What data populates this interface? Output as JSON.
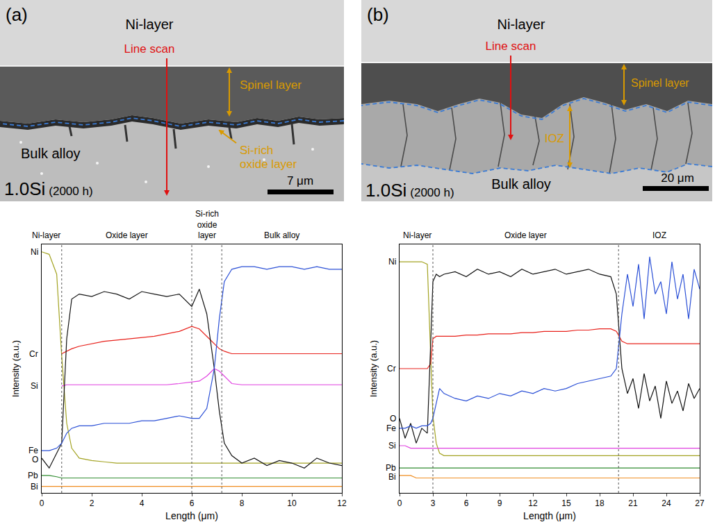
{
  "micrographs": [
    {
      "panel": "(a)",
      "top_layer": "Ni-layer",
      "scan_label": "Line scan",
      "layers": [
        "Spinel layer",
        "Si-rich oxide layer"
      ],
      "substrate": "Bulk alloy",
      "sample": "1.0Si",
      "condition": "(2000 h)",
      "scale_bar": "7 μm"
    },
    {
      "panel": "(b)",
      "top_layer": "Ni-layer",
      "scan_label": "Line scan",
      "layers": [
        "Spinel layer",
        "IOZ"
      ],
      "substrate": "Bulk alloy",
      "sample": "1.0Si",
      "condition": "(2000 h)",
      "scale_bar": "20 μm"
    }
  ],
  "chart_data": [
    {
      "type": "line",
      "x_label": "Length (μm)",
      "y_label": "Intensity (a.u.)",
      "xlim": [
        0,
        12
      ],
      "xticks": [
        0,
        2,
        4,
        6,
        8,
        10,
        12
      ],
      "ylim": [
        0,
        100
      ],
      "tick_labels": "x",
      "grid": false,
      "regions": [
        "Ni-layer",
        "Oxide layer",
        "Si-rich oxide layer",
        "Bulk alloy"
      ],
      "boundaries": [
        0.8,
        6.0,
        7.2
      ],
      "x": [
        0,
        0.3,
        0.6,
        0.8,
        1.0,
        1.2,
        1.5,
        2,
        2.5,
        3,
        3.5,
        4,
        4.5,
        5,
        5.5,
        6,
        6.3,
        6.6,
        6.9,
        7.1,
        7.3,
        7.6,
        8,
        8.5,
        9,
        9.5,
        10,
        10.5,
        11,
        11.5,
        12
      ],
      "series": [
        {
          "name": "Ni",
          "color": "#a3a322",
          "values": [
            97,
            96,
            88,
            55,
            28,
            18,
            14,
            13,
            12.5,
            12,
            12,
            12,
            12,
            12,
            12,
            12,
            12,
            12,
            12,
            12,
            12,
            12,
            12,
            12,
            12,
            12,
            12,
            12,
            12,
            12,
            12
          ]
        },
        {
          "name": "Cr",
          "color": "#e8201a",
          "values": [
            null,
            null,
            null,
            56,
            57,
            58,
            59,
            60,
            61,
            61.5,
            62,
            62.5,
            63,
            64,
            65,
            67,
            66,
            63,
            60,
            58,
            57,
            56,
            56,
            56,
            56,
            56,
            56,
            56,
            56,
            56,
            56
          ]
        },
        {
          "name": "Si",
          "color": "#e040e0",
          "values": [
            null,
            null,
            null,
            43,
            43.5,
            43.5,
            43.5,
            43.5,
            43.5,
            43.5,
            43.5,
            43.5,
            43.5,
            43.5,
            44,
            44.5,
            45,
            47,
            50,
            49,
            47,
            44,
            43.5,
            43.5,
            43.5,
            43.5,
            43.5,
            43.5,
            43.5,
            43.5,
            43.5
          ]
        },
        {
          "name": "O",
          "color": "#111111",
          "values": [
            14,
            10,
            16,
            20,
            62,
            78,
            80,
            79,
            81,
            80,
            78,
            81,
            80,
            79,
            80,
            75,
            82,
            72,
            50,
            33,
            20,
            15,
            12,
            14,
            11,
            13,
            12,
            10,
            14,
            12,
            11
          ]
        },
        {
          "name": "Fe",
          "color": "#2a4fd6",
          "values": [
            17,
            17,
            18,
            20,
            24,
            26,
            27,
            27,
            28,
            28,
            28,
            29,
            29,
            30,
            31,
            30,
            30,
            34,
            50,
            70,
            85,
            90,
            91,
            91,
            90,
            91,
            91,
            90,
            91,
            90,
            90
          ]
        },
        {
          "name": "Pb",
          "color": "#2e8b2e",
          "values": [
            7,
            7,
            6.5,
            6,
            6,
            6,
            6,
            6,
            6,
            6,
            6,
            6,
            6,
            6,
            6,
            6,
            6,
            6,
            6,
            6,
            6,
            6,
            6,
            6,
            6,
            6,
            6,
            6,
            6,
            6,
            6
          ]
        },
        {
          "name": "Bi",
          "color": "#f08c1e",
          "values": [
            2.6,
            2.6,
            2.6,
            2.6,
            2.6,
            2.6,
            2.6,
            2.6,
            2.6,
            2.6,
            2.6,
            2.6,
            2.6,
            2.6,
            2.6,
            2.6,
            2.6,
            2.6,
            2.6,
            2.6,
            2.6,
            2.6,
            2.6,
            2.6,
            2.6,
            2.6,
            2.6,
            2.6,
            2.6,
            2.6,
            2.6
          ]
        }
      ]
    },
    {
      "type": "line",
      "x_label": "Length (μm)",
      "y_label": "Intensity (a.u.)",
      "xlim": [
        0,
        27
      ],
      "xticks": [
        0,
        3,
        6,
        9,
        12,
        15,
        18,
        21,
        24,
        27
      ],
      "ylim": [
        0,
        100
      ],
      "tick_labels": "x",
      "grid": false,
      "regions": [
        "Ni-layer",
        "Oxide layer",
        "IOZ"
      ],
      "boundaries": [
        3.0,
        19.7
      ],
      "x": [
        0,
        0.5,
        1,
        1.5,
        2,
        2.5,
        2.8,
        3.0,
        3.3,
        3.6,
        4,
        5,
        6,
        7,
        8,
        9,
        10,
        11,
        12,
        13,
        14,
        15,
        16,
        17,
        18,
        19,
        19.5,
        20,
        20.5,
        21,
        21.5,
        22,
        22.5,
        23,
        23.5,
        24,
        24.5,
        25,
        25.5,
        26,
        26.5,
        27
      ],
      "series": [
        {
          "name": "Ni",
          "color": "#a3a322",
          "values": [
            93,
            93,
            93,
            93,
            93,
            92,
            55,
            31,
            20,
            16,
            15,
            15,
            15,
            15,
            15,
            15,
            15,
            15,
            15,
            15,
            15,
            15,
            15,
            15,
            15,
            15,
            15,
            15,
            15,
            15,
            15,
            15,
            15,
            15,
            15,
            15,
            15,
            15,
            15,
            15,
            15,
            15
          ]
        },
        {
          "name": "Cr",
          "color": "#e8201a",
          "values": [
            50,
            50,
            50,
            50,
            50,
            50,
            52,
            62,
            63,
            63,
            63,
            63,
            63.5,
            63.5,
            64,
            64,
            64,
            64.5,
            64.5,
            65,
            65,
            65,
            65.5,
            65.5,
            66,
            66,
            65,
            61,
            60,
            60,
            60,
            60,
            60,
            60,
            60,
            60,
            60,
            60,
            60,
            60,
            60,
            60
          ]
        },
        {
          "name": "O",
          "color": "#111111",
          "values": [
            30,
            22,
            28,
            20,
            26,
            24,
            60,
            85,
            88,
            87,
            88,
            89,
            87,
            90,
            88,
            89,
            87,
            90,
            88,
            89,
            90,
            88,
            89,
            90,
            88,
            87,
            80,
            50,
            40,
            46,
            34,
            48,
            37,
            43,
            30,
            45,
            36,
            41,
            33,
            44,
            38,
            42
          ]
        },
        {
          "name": "Fe",
          "color": "#2a4fd6",
          "values": [
            26,
            26,
            27,
            26,
            27,
            27,
            28,
            30,
            36,
            42,
            40,
            38,
            37,
            39,
            38,
            40,
            39,
            41,
            40,
            42,
            41,
            42,
            44,
            45,
            46,
            47,
            50,
            72,
            88,
            75,
            92,
            70,
            95,
            80,
            85,
            72,
            93,
            78,
            88,
            70,
            90,
            82
          ]
        },
        {
          "name": "Si",
          "color": "#e040e0",
          "values": [
            19,
            19,
            18,
            18,
            18,
            18,
            18,
            18,
            18,
            18,
            18,
            18,
            18,
            18,
            18,
            18,
            18,
            18,
            18,
            18,
            18,
            18,
            18,
            18,
            18,
            18,
            18,
            18,
            18,
            18,
            18,
            18,
            18,
            18,
            18,
            18,
            18,
            18,
            18,
            18,
            18,
            18
          ]
        },
        {
          "name": "Pb",
          "color": "#2e8b2e",
          "values": [
            10,
            10,
            10,
            10,
            10,
            10,
            10,
            10,
            10,
            10,
            10,
            10,
            10,
            10,
            10,
            10,
            10,
            10,
            10,
            10,
            10,
            10,
            10,
            10,
            10,
            10,
            10,
            10,
            10,
            10,
            10,
            10,
            10,
            10,
            10,
            10,
            10,
            10,
            10,
            10,
            10,
            10
          ]
        },
        {
          "name": "Bi",
          "color": "#f08c1e",
          "values": [
            7,
            7,
            7,
            6,
            6,
            6,
            6,
            6,
            6,
            6,
            6,
            6,
            6,
            6,
            6,
            6,
            6,
            6,
            6,
            6,
            6,
            6,
            6,
            6,
            6,
            6,
            6,
            6,
            6,
            6,
            6,
            6,
            6,
            6,
            6,
            6,
            6,
            6,
            6,
            6,
            6,
            6
          ]
        }
      ]
    }
  ]
}
